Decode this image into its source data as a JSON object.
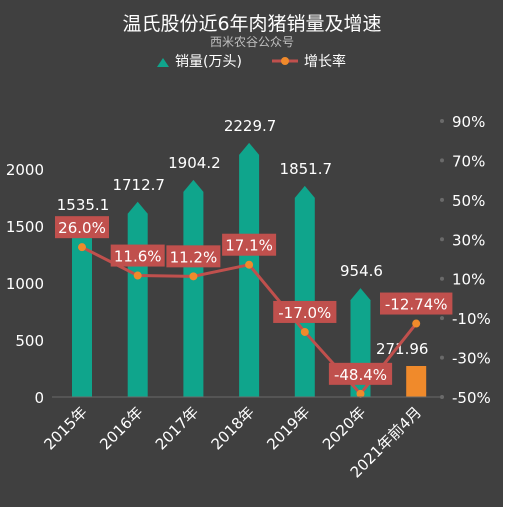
{
  "chart_data": {
    "type": "bar+line",
    "title": "温氏股份近6年肉猪销量及增速",
    "subtitle": "西米农谷公众号",
    "categories": [
      "2015年",
      "2016年",
      "2017年",
      "2018年",
      "2019年",
      "2020年",
      "2021年前4月"
    ],
    "series": [
      {
        "name": "销量(万头)",
        "type": "bar",
        "axis": "left",
        "values": [
          1535.1,
          1712.7,
          1904.2,
          2229.7,
          1851.7,
          954.6,
          271.96
        ],
        "labels": [
          "1535.1",
          "1712.7",
          "1904.2",
          "2229.7",
          "1851.7",
          "954.6",
          "271.96"
        ]
      },
      {
        "name": "增长率",
        "type": "line",
        "axis": "right",
        "values": [
          26.0,
          11.6,
          11.2,
          17.1,
          -17.0,
          -48.4,
          -12.74
        ],
        "labels": [
          "26.0%",
          "11.6%",
          "11.2%",
          "17.1%",
          "-17.0%",
          "-48.4%",
          "-12.74%"
        ]
      }
    ],
    "y_left": {
      "range": [
        0,
        2500
      ],
      "ticks": [
        "0",
        "500",
        "1000",
        "1500",
        "2000"
      ],
      "tick_values": [
        0,
        500,
        1000,
        1500,
        2000
      ]
    },
    "y_right": {
      "range": [
        -50,
        90
      ],
      "ticks": [
        "-50%",
        "-30%",
        "-10%",
        "10%",
        "30%",
        "50%",
        "70%",
        "90%"
      ],
      "tick_values": [
        -50,
        -30,
        -10,
        10,
        30,
        50,
        70,
        90
      ]
    },
    "legend_position": "top",
    "grid": false,
    "colors": {
      "background": "#404040",
      "bar": "#0fa58c",
      "bar_highlight": "#f08a2b",
      "line": "#c0504d",
      "marker": "#f08a2b",
      "label_box": "#c0504d",
      "text": "#ffffff",
      "subtitle": "#bfbfbf"
    }
  }
}
